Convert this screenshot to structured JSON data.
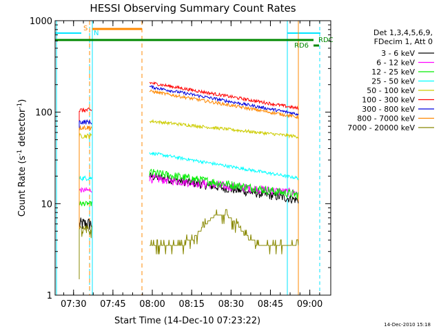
{
  "chart_data": {
    "type": "line",
    "title": "HESSI Observing Summary Count Rates",
    "xlabel": "Start Time (14-Dec-10 07:23:22)",
    "ylabel_main": "Count Rate (s",
    "ylabel_sup1": "-1",
    "ylabel_mid": " detector",
    "ylabel_sup2": "-1",
    "ylabel_end": ")",
    "yscale": "log",
    "ylim": [
      1,
      1000
    ],
    "xlim_minutes": [
      7.383,
      9.133
    ],
    "x_ticks": [
      {
        "label": "07:30",
        "hour": 7.5
      },
      {
        "label": "07:45",
        "hour": 7.75
      },
      {
        "label": "08:00",
        "hour": 8.0
      },
      {
        "label": "08:15",
        "hour": 8.25
      },
      {
        "label": "08:30",
        "hour": 8.5
      },
      {
        "label": "08:45",
        "hour": 8.75
      },
      {
        "label": "09:00",
        "hour": 9.0
      }
    ],
    "y_ticks": [
      {
        "label": "1",
        "value": 1
      },
      {
        "label": "10",
        "value": 10
      },
      {
        "label": "100",
        "value": 100
      },
      {
        "label": "1000",
        "value": 1000
      }
    ],
    "legend_header": [
      "Det 1,3,4,5,6,9,",
      "FDecim 1, Att 0"
    ],
    "series": [
      {
        "name": "3 - 6 keV",
        "color": "#000000",
        "seg1": 6,
        "start": 20,
        "end": 11
      },
      {
        "name": "6 - 12 keV",
        "color": "#ff00ff",
        "seg1": 14,
        "start": 19,
        "end": 13
      },
      {
        "name": "12 - 25 keV",
        "color": "#00ee00",
        "seg1": 10,
        "start": 22,
        "end": 12.5
      },
      {
        "name": "25 - 50 keV",
        "color": "#00ffff",
        "seg1": 19,
        "start": 36,
        "end": 19
      },
      {
        "name": "50 - 100 keV",
        "color": "#cccc00",
        "seg1": 55,
        "start": 80,
        "end": 54
      },
      {
        "name": "100 - 300 keV",
        "color": "#ff0000",
        "seg1": 105,
        "start": 210,
        "end": 110
      },
      {
        "name": "300 - 800 keV",
        "color": "#0000dd",
        "seg1": 78,
        "start": 190,
        "end": 95
      },
      {
        "name": "800 - 7000 keV",
        "color": "#ff8800",
        "seg1": 68,
        "start": 170,
        "end": 88
      },
      {
        "name": "7000 - 20000 keV",
        "color": "#888800",
        "seg1": 5,
        "start": 3.5,
        "end": 3.3
      }
    ],
    "flags": {
      "saa_label": "S",
      "night_label": "N",
      "rd6_label": "RD6",
      "rdc_label": "RDC"
    },
    "colors": {
      "night": "#00e5ff",
      "saa": "#ff8800",
      "decim": "#008800",
      "gap": "#ff8800"
    }
  },
  "footer": {
    "timestamp": "14-Dec-2010 15:18"
  }
}
